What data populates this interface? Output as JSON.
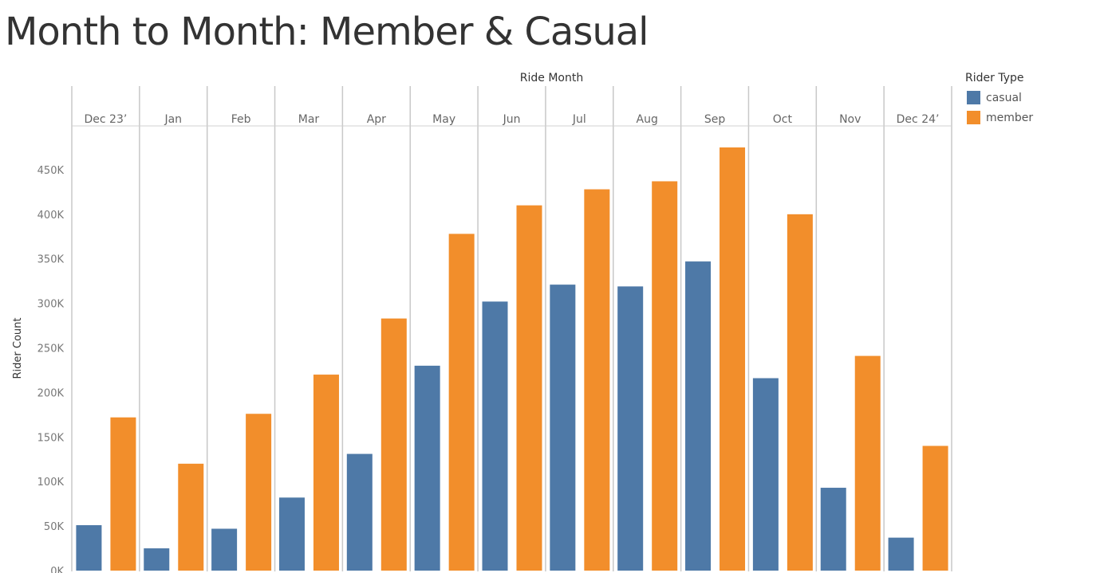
{
  "title": "Month to Month: Member & Casual",
  "legend": {
    "title": "Rider Type",
    "items": [
      {
        "label": "casual",
        "color": "#4e79a7"
      },
      {
        "label": "member",
        "color": "#f28e2b"
      }
    ]
  },
  "chart_data": {
    "type": "bar",
    "column_header": "Ride Month",
    "ylabel": "Rider Count",
    "ylim": [
      0,
      490000
    ],
    "yticks": [
      0,
      50000,
      100000,
      150000,
      200000,
      250000,
      300000,
      350000,
      400000,
      450000
    ],
    "ytick_labels": [
      "0K",
      "50K",
      "100K",
      "150K",
      "200K",
      "250K",
      "300K",
      "350K",
      "400K",
      "450K"
    ],
    "categories": [
      "Dec 23’",
      "Jan",
      "Feb",
      "Mar",
      "Apr",
      "May",
      "Jun",
      "Jul",
      "Aug",
      "Sep",
      "Oct",
      "Nov",
      "Dec 24’"
    ],
    "series": [
      {
        "name": "casual",
        "color": "#4e79a7",
        "values": [
          51000,
          25000,
          47000,
          82000,
          131000,
          230000,
          302000,
          321000,
          319000,
          347000,
          216000,
          93000,
          37000
        ]
      },
      {
        "name": "member",
        "color": "#f28e2b",
        "values": [
          172000,
          120000,
          176000,
          220000,
          283000,
          378000,
          410000,
          428000,
          437000,
          475000,
          400000,
          241000,
          140000
        ]
      }
    ],
    "grid": false,
    "legend_position": "top-right"
  }
}
